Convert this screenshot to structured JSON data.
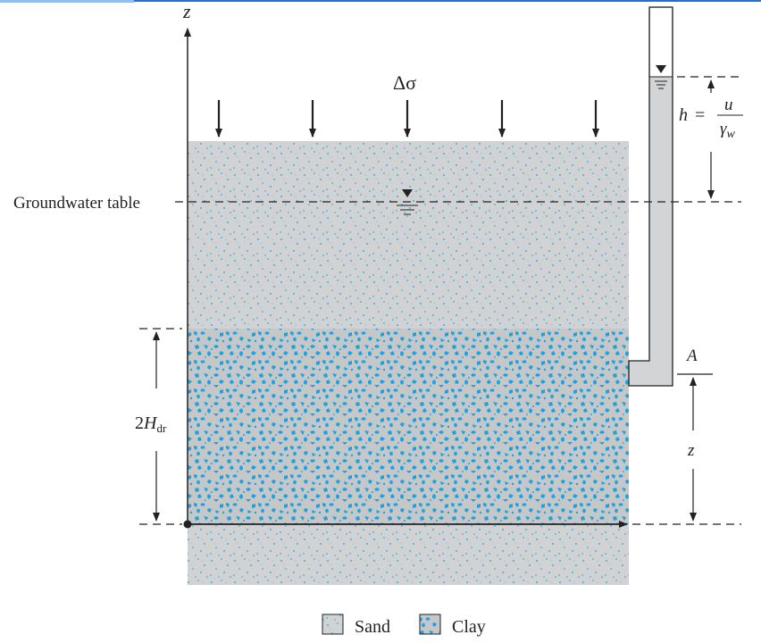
{
  "labels": {
    "z_axis": "z",
    "delta_sigma": "Δσ",
    "groundwater_table": "Groundwater table",
    "h_lhs": "h",
    "h_eq": "=",
    "h_num": "u",
    "h_den": "γ",
    "h_den_sub": "w",
    "point_a": "A",
    "z_dim": "z",
    "hdr_coef": "2",
    "hdr_main": "H",
    "hdr_sub": "dr"
  },
  "legend": {
    "sand": "Sand",
    "clay": "Clay"
  },
  "colors": {
    "soil_gray": "#d0d2d4",
    "clay_gray": "#c6c7c9",
    "speck_blue": "#1aa3e0",
    "line": "#222222",
    "top_band": "#1f6fdc"
  }
}
